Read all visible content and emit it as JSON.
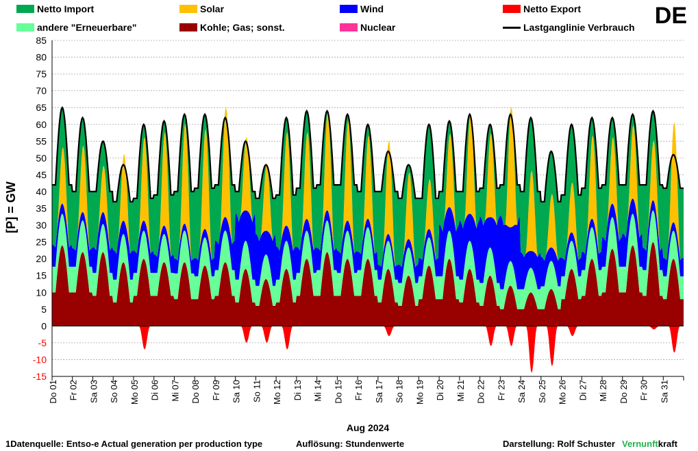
{
  "country_code": "DE",
  "footer": {
    "source": "1Datenquelle: Entso-e  Actual generation per production type",
    "resolution": "Auflösung: Stundenwerte",
    "author": "Darstellung:  Rolf Schuster",
    "brand_a": "Vernunft",
    "brand_b": "kraft"
  },
  "chart_data": {
    "type": "area",
    "title": "",
    "xlabel": "Aug 2024",
    "ylabel": "[P]  =  GW",
    "ylim": [
      -15,
      85
    ],
    "ytick_step": 5,
    "grid": true,
    "legend_position": "top",
    "x_ticks": [
      "Do 01",
      "Fr 02",
      "Sa 03",
      "So 04",
      "Mo 05",
      "Di 06",
      "Mi 07",
      "Do 08",
      "Fr 09",
      "Sa 10",
      "So 11",
      "Mo 12",
      "Di 13",
      "Mi 14",
      "Do 15",
      "Fr 16",
      "Sa 17",
      "So 18",
      "Mo 19",
      "Di 20",
      "Mi 21",
      "Do 22",
      "Fr 23",
      "Sa 24",
      "So 25",
      "Mo 26",
      "Di 27",
      "Mi 28",
      "Do 29",
      "Fr 30",
      "Sa 31"
    ],
    "series": [
      {
        "name": "Netto Import",
        "color": "#00a84f"
      },
      {
        "name": "Solar",
        "color": "#ffc000"
      },
      {
        "name": "Wind",
        "color": "#0000ff"
      },
      {
        "name": "Netto Export",
        "color": "#ff0000"
      },
      {
        "name": "andere \"Erneuerbare\"",
        "color": "#66ff99"
      },
      {
        "name": "Kohle; Gas; sonst.",
        "color": "#990000"
      },
      {
        "name": "Nuclear",
        "color": "#ff3399"
      },
      {
        "name": "Lastganglinie Verbrauch",
        "color": "#000000"
      }
    ],
    "daily": {
      "fossil_peak": [
        24,
        22,
        22,
        19,
        20,
        19,
        19,
        18,
        19,
        17,
        14,
        17,
        20,
        22,
        20,
        20,
        17,
        15,
        18,
        20,
        17,
        15,
        12,
        10,
        11,
        17,
        20,
        23,
        24,
        25,
        20
      ],
      "fossil_base": [
        10,
        10,
        9,
        7,
        9,
        9,
        8,
        8,
        9,
        7,
        6,
        7,
        9,
        9,
        9,
        9,
        7,
        6,
        8,
        8,
        7,
        6,
        5,
        5,
        5,
        8,
        9,
        10,
        10,
        9,
        8
      ],
      "other_renewable": [
        9,
        9,
        8,
        8,
        8,
        8,
        9,
        8,
        9,
        8,
        7,
        8,
        8,
        9,
        8,
        9,
        8,
        8,
        8,
        8,
        8,
        8,
        7,
        7,
        8,
        8,
        9,
        9,
        9,
        9,
        8
      ],
      "wind": [
        6,
        5,
        7,
        8,
        6,
        5,
        4,
        5,
        8,
        18,
        14,
        9,
        7,
        6,
        6,
        5,
        4,
        5,
        5,
        14,
        16,
        18,
        20,
        10,
        8,
        5,
        5,
        8,
        9,
        6,
        5
      ],
      "solar_peak": [
        17,
        20,
        14,
        20,
        25,
        28,
        30,
        30,
        33,
        22,
        20,
        28,
        26,
        30,
        30,
        25,
        28,
        20,
        15,
        22,
        30,
        25,
        36,
        24,
        16,
        15,
        25,
        20,
        22,
        18,
        30
      ],
      "load_peak": [
        65,
        62,
        55,
        48,
        60,
        61,
        63,
        63,
        62,
        55,
        48,
        62,
        64,
        64,
        63,
        60,
        52,
        48,
        60,
        61,
        63,
        60,
        63,
        62,
        52,
        60,
        62,
        62,
        63,
        64,
        51
      ],
      "load_min": [
        42,
        40,
        40,
        37,
        38,
        39,
        40,
        41,
        42,
        40,
        38,
        39,
        41,
        42,
        42,
        40,
        40,
        38,
        38,
        40,
        40,
        41,
        42,
        40,
        37,
        39,
        41,
        42,
        42,
        42,
        41
      ],
      "export_peak": [
        0,
        0,
        0,
        0,
        7,
        0,
        0,
        0,
        0,
        5,
        5,
        7,
        0,
        0,
        0,
        0,
        3,
        0,
        0,
        0,
        0,
        6,
        6,
        14,
        12,
        3,
        0,
        0,
        0,
        1,
        8
      ]
    }
  }
}
